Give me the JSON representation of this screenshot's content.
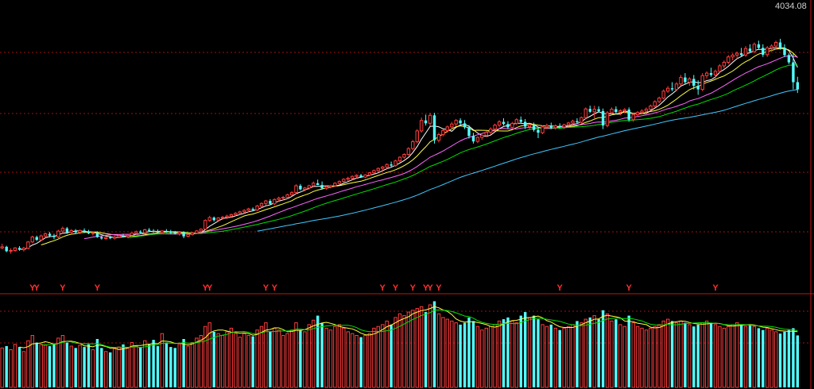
{
  "chart_data": {
    "type": "candlestick",
    "price_label": "4034.08",
    "signal_glyph": "Y",
    "price_range": [
      2600,
      4060
    ],
    "volume_range": [
      0,
      100
    ],
    "colors": {
      "up": "#ff3c3c",
      "down": "#54ffff",
      "background": "#000000",
      "grid": "#a01010",
      "separator": "#c01818",
      "signal": "#ff3030",
      "ma5": "#ffffff",
      "ma10": "#ffff40",
      "ma20": "#ff66ff",
      "ma30": "#00e000",
      "ma60": "#40c8ff",
      "vol_ma5": "#ffff40",
      "vol_ma10": "#00e000"
    },
    "signal_bars": [
      7,
      8,
      14,
      22,
      47,
      48,
      61,
      63,
      88,
      91,
      95,
      98,
      99,
      101,
      129,
      145,
      165
    ],
    "candles": [
      [
        2722,
        2745,
        2715,
        2728,
        44
      ],
      [
        2728,
        2734,
        2698,
        2704,
        46
      ],
      [
        2704,
        2720,
        2690,
        2708,
        42
      ],
      [
        2708,
        2726,
        2700,
        2722,
        48
      ],
      [
        2722,
        2732,
        2706,
        2712,
        45
      ],
      [
        2712,
        2728,
        2702,
        2720,
        40
      ],
      [
        2720,
        2760,
        2714,
        2755,
        52
      ],
      [
        2755,
        2790,
        2748,
        2782,
        58
      ],
      [
        2782,
        2790,
        2760,
        2766,
        50
      ],
      [
        2766,
        2796,
        2760,
        2788,
        48
      ],
      [
        2788,
        2806,
        2778,
        2800,
        47
      ],
      [
        2800,
        2810,
        2780,
        2790,
        46
      ],
      [
        2790,
        2800,
        2770,
        2782,
        49
      ],
      [
        2782,
        2822,
        2776,
        2815,
        55
      ],
      [
        2815,
        2840,
        2806,
        2830,
        58
      ],
      [
        2830,
        2838,
        2800,
        2808,
        50
      ],
      [
        2808,
        2826,
        2798,
        2818,
        46
      ],
      [
        2818,
        2826,
        2800,
        2808,
        44
      ],
      [
        2808,
        2824,
        2798,
        2818,
        47
      ],
      [
        2818,
        2830,
        2804,
        2812,
        45
      ],
      [
        2812,
        2822,
        2798,
        2802,
        48
      ],
      [
        2802,
        2812,
        2790,
        2806,
        42
      ],
      [
        2806,
        2814,
        2778,
        2782,
        54
      ],
      [
        2782,
        2790,
        2768,
        2774,
        44
      ],
      [
        2774,
        2786,
        2766,
        2780,
        40
      ],
      [
        2780,
        2790,
        2770,
        2776,
        39
      ],
      [
        2776,
        2788,
        2768,
        2782,
        43
      ],
      [
        2782,
        2796,
        2776,
        2790,
        45
      ],
      [
        2790,
        2800,
        2780,
        2786,
        48
      ],
      [
        2786,
        2796,
        2780,
        2792,
        44
      ],
      [
        2792,
        2808,
        2786,
        2804,
        50
      ],
      [
        2804,
        2818,
        2796,
        2812,
        46
      ],
      [
        2812,
        2820,
        2800,
        2806,
        45
      ],
      [
        2806,
        2828,
        2800,
        2822,
        52
      ],
      [
        2822,
        2832,
        2810,
        2816,
        48
      ],
      [
        2816,
        2826,
        2806,
        2814,
        53
      ],
      [
        2814,
        2824,
        2804,
        2808,
        46
      ],
      [
        2808,
        2820,
        2798,
        2816,
        60
      ],
      [
        2816,
        2826,
        2806,
        2812,
        50
      ],
      [
        2812,
        2822,
        2800,
        2806,
        45
      ],
      [
        2806,
        2816,
        2796,
        2800,
        44
      ],
      [
        2800,
        2810,
        2790,
        2808,
        48
      ],
      [
        2808,
        2814,
        2776,
        2786,
        54
      ],
      [
        2786,
        2800,
        2780,
        2796,
        46
      ],
      [
        2796,
        2810,
        2790,
        2804,
        50
      ],
      [
        2804,
        2820,
        2798,
        2816,
        55
      ],
      [
        2816,
        2830,
        2810,
        2826,
        58
      ],
      [
        2826,
        2880,
        2820,
        2874,
        68
      ],
      [
        2874,
        2900,
        2866,
        2890,
        72
      ],
      [
        2890,
        2896,
        2868,
        2876,
        62
      ],
      [
        2876,
        2892,
        2870,
        2888,
        60
      ],
      [
        2888,
        2900,
        2878,
        2892,
        58
      ],
      [
        2892,
        2906,
        2882,
        2898,
        62
      ],
      [
        2898,
        2912,
        2890,
        2906,
        66
      ],
      [
        2906,
        2920,
        2898,
        2914,
        60
      ],
      [
        2914,
        2928,
        2906,
        2922,
        56
      ],
      [
        2922,
        2936,
        2914,
        2930,
        60
      ],
      [
        2930,
        2944,
        2920,
        2938,
        58
      ],
      [
        2938,
        2946,
        2926,
        2932,
        57
      ],
      [
        2932,
        2960,
        2926,
        2954,
        64
      ],
      [
        2954,
        2974,
        2946,
        2968,
        68
      ],
      [
        2968,
        2988,
        2956,
        2982,
        72
      ],
      [
        2982,
        2992,
        2958,
        2966,
        62
      ],
      [
        2966,
        2996,
        2958,
        2990,
        66
      ],
      [
        2990,
        3006,
        2978,
        2998,
        64
      ],
      [
        2998,
        3010,
        2986,
        3002,
        58
      ],
      [
        3002,
        3022,
        2994,
        3016,
        60
      ],
      [
        3016,
        3036,
        3008,
        3028,
        64
      ],
      [
        3028,
        3074,
        3020,
        3066,
        72
      ],
      [
        3066,
        3076,
        3040,
        3046,
        64
      ],
      [
        3046,
        3060,
        3036,
        3054,
        62
      ],
      [
        3054,
        3072,
        3044,
        3066,
        70
      ],
      [
        3066,
        3090,
        3058,
        3080,
        75
      ],
      [
        3080,
        3100,
        3070,
        3070,
        80
      ],
      [
        3070,
        3090,
        3046,
        3052,
        72
      ],
      [
        3052,
        3066,
        3044,
        3060,
        66
      ],
      [
        3060,
        3072,
        3052,
        3066,
        64
      ],
      [
        3066,
        3086,
        3060,
        3080,
        68
      ],
      [
        3080,
        3096,
        3072,
        3090,
        70
      ],
      [
        3090,
        3108,
        3084,
        3102,
        66
      ],
      [
        3102,
        3116,
        3090,
        3108,
        62
      ],
      [
        3108,
        3124,
        3100,
        3118,
        60
      ],
      [
        3118,
        3130,
        3108,
        3124,
        58
      ],
      [
        3124,
        3132,
        3110,
        3114,
        56
      ],
      [
        3114,
        3130,
        3108,
        3126,
        58
      ],
      [
        3126,
        3142,
        3118,
        3138,
        60
      ],
      [
        3138,
        3156,
        3130,
        3150,
        66
      ],
      [
        3150,
        3168,
        3142,
        3162,
        68
      ],
      [
        3162,
        3176,
        3150,
        3170,
        70
      ],
      [
        3170,
        3190,
        3160,
        3184,
        74
      ],
      [
        3184,
        3200,
        3172,
        3178,
        70
      ],
      [
        3178,
        3210,
        3172,
        3204,
        78
      ],
      [
        3204,
        3230,
        3196,
        3224,
        82
      ],
      [
        3224,
        3246,
        3216,
        3240,
        80
      ],
      [
        3240,
        3280,
        3232,
        3272,
        84
      ],
      [
        3272,
        3320,
        3262,
        3310,
        86
      ],
      [
        3310,
        3380,
        3300,
        3370,
        88
      ],
      [
        3370,
        3444,
        3360,
        3428,
        90
      ],
      [
        3428,
        3460,
        3400,
        3412,
        84
      ],
      [
        3412,
        3470,
        3396,
        3456,
        92
      ],
      [
        3456,
        3470,
        3300,
        3318,
        96
      ],
      [
        3318,
        3360,
        3306,
        3350,
        82
      ],
      [
        3350,
        3380,
        3340,
        3372,
        78
      ],
      [
        3372,
        3400,
        3360,
        3392,
        76
      ],
      [
        3392,
        3420,
        3380,
        3408,
        74
      ],
      [
        3408,
        3436,
        3396,
        3428,
        72
      ],
      [
        3428,
        3440,
        3406,
        3412,
        70
      ],
      [
        3412,
        3430,
        3380,
        3390,
        72
      ],
      [
        3390,
        3402,
        3328,
        3342,
        78
      ],
      [
        3342,
        3360,
        3300,
        3312,
        74
      ],
      [
        3312,
        3340,
        3302,
        3334,
        68
      ],
      [
        3334,
        3350,
        3320,
        3346,
        64
      ],
      [
        3346,
        3370,
        3336,
        3362,
        66
      ],
      [
        3362,
        3390,
        3350,
        3380,
        68
      ],
      [
        3380,
        3410,
        3370,
        3402,
        70
      ],
      [
        3402,
        3430,
        3390,
        3420,
        74
      ],
      [
        3420,
        3440,
        3400,
        3408,
        76
      ],
      [
        3408,
        3424,
        3380,
        3390,
        78
      ],
      [
        3390,
        3420,
        3382,
        3412,
        74
      ],
      [
        3412,
        3440,
        3402,
        3432,
        72
      ],
      [
        3432,
        3450,
        3410,
        3420,
        80
      ],
      [
        3420,
        3436,
        3380,
        3394,
        84
      ],
      [
        3394,
        3410,
        3376,
        3404,
        78
      ],
      [
        3404,
        3416,
        3366,
        3376,
        80
      ],
      [
        3376,
        3392,
        3330,
        3360,
        76
      ],
      [
        3360,
        3400,
        3352,
        3392,
        70
      ],
      [
        3392,
        3410,
        3380,
        3400,
        68
      ],
      [
        3400,
        3416,
        3380,
        3388,
        70
      ],
      [
        3388,
        3406,
        3376,
        3398,
        66
      ],
      [
        3398,
        3412,
        3384,
        3392,
        64
      ],
      [
        3392,
        3410,
        3380,
        3404,
        66
      ],
      [
        3404,
        3420,
        3396,
        3414,
        68
      ],
      [
        3414,
        3432,
        3402,
        3424,
        70
      ],
      [
        3424,
        3440,
        3410,
        3418,
        74
      ],
      [
        3418,
        3450,
        3410,
        3444,
        72
      ],
      [
        3444,
        3500,
        3436,
        3492,
        76
      ],
      [
        3492,
        3510,
        3470,
        3476,
        78
      ],
      [
        3476,
        3510,
        3440,
        3490,
        80
      ],
      [
        3490,
        3506,
        3470,
        3480,
        76
      ],
      [
        3480,
        3494,
        3380,
        3400,
        86
      ],
      [
        3400,
        3480,
        3390,
        3470,
        82
      ],
      [
        3470,
        3500,
        3460,
        3490,
        74
      ],
      [
        3490,
        3506,
        3466,
        3474,
        76
      ],
      [
        3474,
        3490,
        3456,
        3482,
        70
      ],
      [
        3482,
        3496,
        3470,
        3488,
        68
      ],
      [
        3488,
        3500,
        3420,
        3432,
        80
      ],
      [
        3432,
        3468,
        3420,
        3460,
        72
      ],
      [
        3460,
        3480,
        3450,
        3472,
        68
      ],
      [
        3472,
        3490,
        3462,
        3480,
        66
      ],
      [
        3480,
        3500,
        3470,
        3490,
        64
      ],
      [
        3490,
        3516,
        3482,
        3508,
        66
      ],
      [
        3508,
        3540,
        3500,
        3532,
        68
      ],
      [
        3532,
        3560,
        3524,
        3552,
        70
      ],
      [
        3552,
        3600,
        3544,
        3590,
        74
      ],
      [
        3590,
        3618,
        3580,
        3606,
        76
      ],
      [
        3606,
        3640,
        3590,
        3600,
        74
      ],
      [
        3600,
        3640,
        3590,
        3630,
        72
      ],
      [
        3630,
        3680,
        3620,
        3666,
        74
      ],
      [
        3666,
        3690,
        3630,
        3640,
        72
      ],
      [
        3640,
        3668,
        3620,
        3658,
        70
      ],
      [
        3658,
        3680,
        3600,
        3620,
        68
      ],
      [
        3620,
        3650,
        3570,
        3600,
        70
      ],
      [
        3600,
        3690,
        3590,
        3676,
        72
      ],
      [
        3676,
        3700,
        3660,
        3690,
        74
      ],
      [
        3690,
        3720,
        3670,
        3680,
        72
      ],
      [
        3680,
        3710,
        3660,
        3700,
        70
      ],
      [
        3700,
        3740,
        3690,
        3730,
        68
      ],
      [
        3730,
        3760,
        3716,
        3750,
        66
      ],
      [
        3750,
        3790,
        3740,
        3780,
        68
      ],
      [
        3780,
        3800,
        3760,
        3790,
        70
      ],
      [
        3790,
        3810,
        3770,
        3800,
        72
      ],
      [
        3800,
        3830,
        3780,
        3790,
        70
      ],
      [
        3790,
        3840,
        3780,
        3826,
        68
      ],
      [
        3826,
        3850,
        3800,
        3810,
        70
      ],
      [
        3810,
        3860,
        3800,
        3850,
        68
      ],
      [
        3850,
        3870,
        3820,
        3830,
        66
      ],
      [
        3830,
        3850,
        3780,
        3792,
        64
      ],
      [
        3792,
        3840,
        3780,
        3830,
        66
      ],
      [
        3830,
        3850,
        3810,
        3840,
        64
      ],
      [
        3840,
        3870,
        3820,
        3860,
        62
      ],
      [
        3860,
        3880,
        3820,
        3830,
        60
      ],
      [
        3830,
        3850,
        3780,
        3790,
        62
      ],
      [
        3790,
        3800,
        3740,
        3750,
        64
      ],
      [
        3750,
        3800,
        3600,
        3640,
        66
      ],
      [
        3640,
        3670,
        3580,
        3600,
        58
      ]
    ]
  }
}
